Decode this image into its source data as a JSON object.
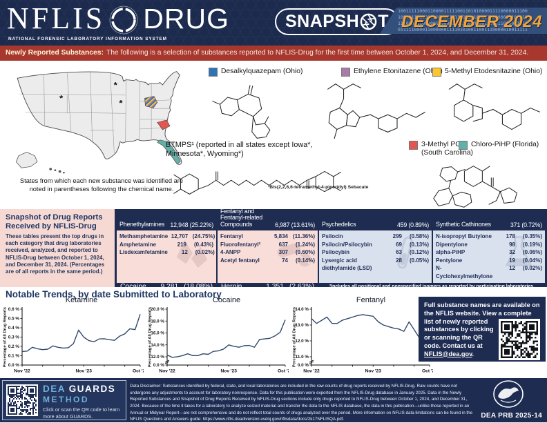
{
  "header": {
    "nflis": "NFLIS",
    "drug": "DRUG",
    "subtitle": "NATIONAL FORENSIC LABORATORY INFORMATION SYSTEM",
    "badge_pre": "SNAPSH",
    "badge_post": "T",
    "issue": "DECEMBER 2024",
    "binary_rows": [
      "100111110001100001111100110101000011110000011100",
      "100011111000011000010110100110011110000011101111",
      "111000111000001100000011110101001100111000001111",
      "011111000011000000111101010011001110000010011111"
    ]
  },
  "banner": {
    "label": "Newly Reported Substances:",
    "text": "The following is a selection of substances reported to NFLIS-Drug for the first time between October 1, 2024, and December 31, 2024."
  },
  "map": {
    "caption": "States from which each new substance was identified are\nnoted in parentheses following the chemical name.",
    "asterisk": "*",
    "asterisk_states": [
      "Wyoming",
      "Minnesota",
      "Iowa"
    ],
    "highlights": [
      {
        "state": "Ohio",
        "style": "striped-blue-purple-yellow"
      },
      {
        "state": "South Carolina",
        "color": "#e2574f"
      },
      {
        "state": "Florida",
        "color": "#62b0a7"
      }
    ]
  },
  "substances": [
    {
      "label": "Desalkylquazepam (Ohio)",
      "color": "#2e74b5"
    },
    {
      "label": "Ethylene Etonitazene (Ohio)",
      "color": "#a87ba8"
    },
    {
      "label": "5-Methyl Etodesnitazine (Ohio)",
      "color": "#fdc42c"
    },
    {
      "label": "BTMPS¹ (reported in all states except Iowa*, Minnesota*, Wyoming*)",
      "footnote": "¹Bis(2,2,6,6-tetramethyl-4-piperidyl) Sebacate"
    },
    {
      "label": "3-Methyl PCP (South Carolina)",
      "color": "#e2574f"
    },
    {
      "label": "Chloro-PiHP (Florida)",
      "color": "#62b0a7"
    }
  ],
  "snapshot": {
    "panel_title": "Snapshot of Drug Reports Received by NFLIS-Drug",
    "panel_body": "These tables present the top drugs in each category that drug laboratories received, analyzed, and reported to NFLIS-Drug between October 1, 2024, and December 31, 2024. (Percentages are of all reports in the same period.)",
    "footnote": "²Includes all positional and nonspecified isomers as reported by participating laboratories.",
    "categories": [
      {
        "name": "Phenethylamines",
        "count": "12,948",
        "pct": "(25.22%)",
        "theme": "pink",
        "watermark": "crystals-icon",
        "rows": [
          {
            "name": "Methamphetamine",
            "count": "12,707",
            "pct": "(24.75%)"
          },
          {
            "name": "Amphetamine",
            "count": "219",
            "pct": "(0.43%)"
          },
          {
            "name": "Lisdexamfetamine",
            "count": "12",
            "pct": "(0.02%)"
          }
        ],
        "footer": {
          "name": "Cocaine",
          "count": "9,281",
          "pct": "(18.08%)"
        }
      },
      {
        "name": "Fentanyl and Fentanyl-related Compounds",
        "count": "6,987",
        "pct": "(13.61%)",
        "theme": "pink",
        "watermark": "pills-icon",
        "rows": [
          {
            "name": "Fentanyl",
            "count": "5,834",
            "pct": "(11.36%)"
          },
          {
            "name": "Fluorofentanyl²",
            "count": "637",
            "pct": "(1.24%)"
          },
          {
            "name": "4-ANPP",
            "count": "307",
            "pct": "(0.60%)"
          },
          {
            "name": "Acetyl fentanyl",
            "count": "74",
            "pct": "(0.14%)"
          }
        ],
        "footer": {
          "name": "Heroin",
          "count": "1,351",
          "pct": "(2.63%)"
        }
      },
      {
        "name": "Psychedelics",
        "count": "459",
        "pct": "(0.89%)",
        "theme": "blue",
        "watermark": "testtube-icon",
        "rows": [
          {
            "name": "Psilocin",
            "count": "299",
            "pct": "(0.58%)"
          },
          {
            "name": "Psilocin/Psilocybin",
            "count": "69",
            "pct": "(0.13%)"
          },
          {
            "name": "Psilocybin",
            "count": "63",
            "pct": "(0.12%)"
          },
          {
            "name": "Lysergic acid diethylamide (LSD)",
            "count": "28",
            "pct": "(0.05%)"
          }
        ]
      },
      {
        "name": "Synthetic Cathinones",
        "count": "371",
        "pct": "(0.72%)",
        "theme": "blue",
        "watermark": "flask-icon",
        "rows": [
          {
            "name": "N-isopropyl Butylone",
            "count": "178",
            "pct": "(0.35%)"
          },
          {
            "name": "Dipentylone",
            "count": "98",
            "pct": "(0.19%)"
          },
          {
            "name": "alpha-PiHP",
            "count": "32",
            "pct": "(0.06%)"
          },
          {
            "name": "Pentylone",
            "count": "19",
            "pct": "(0.04%)"
          },
          {
            "name": "N-Cyclohexylmethylone",
            "count": "12",
            "pct": "(0.02%)"
          }
        ]
      }
    ]
  },
  "trends": {
    "title": "Notable Trends, by date Submitted to Laboratory"
  },
  "chart_data": [
    {
      "type": "line",
      "title": "Ketamine",
      "ylabel": "Percentage of All Drug Reports",
      "x_range": [
        "Nov 2022",
        "Oct 2024"
      ],
      "values": [
        0.145,
        0.15,
        0.19,
        0.175,
        0.165,
        0.17,
        0.205,
        0.19,
        0.182,
        0.186,
        0.23,
        0.375,
        0.3,
        0.262,
        0.25,
        0.28,
        0.282,
        0.272,
        0.265,
        0.31,
        0.335,
        0.39,
        0.38,
        0.545
      ],
      "ylim": [
        0,
        0.6
      ],
      "axis_break": false,
      "line_color": "#31486e",
      "y_ticks": [
        {
          "value": 0,
          "label": "0.0 %"
        },
        {
          "value": 0.1,
          "label": "0.1 %"
        },
        {
          "value": 0.2,
          "label": "0.2 %"
        },
        {
          "value": 0.3,
          "label": "0.3 %"
        },
        {
          "value": 0.4,
          "label": "0.4 %"
        },
        {
          "value": 0.5,
          "label": "0.5 %"
        },
        {
          "value": 0.6,
          "label": "0.6 %"
        }
      ],
      "x_ticks": [
        {
          "index": 0,
          "label": "Nov '22"
        },
        {
          "index": 12,
          "label": "Nov '23"
        },
        {
          "index": 23,
          "label": "Oct '24"
        }
      ]
    },
    {
      "type": "line",
      "title": "Cocaine",
      "ylabel": "Percentage of All Drug Reports",
      "x_range": [
        "Nov 2022",
        "Oct 2024"
      ],
      "values": [
        12.3,
        11.9,
        12.0,
        12.2,
        12.5,
        12.2,
        12.2,
        12.5,
        12.4,
        12.9,
        13.0,
        13.3,
        14.0,
        13.75,
        13.6,
        13.85,
        13.9,
        13.6,
        14.9,
        15.0,
        15.1,
        15.5,
        16.1,
        18.2
      ],
      "ylim": [
        12,
        20
      ],
      "axis_break": true,
      "zero_label": "0.0 %",
      "line_color": "#31486e",
      "y_ticks": [
        {
          "value": 12,
          "label": "12.0 %"
        },
        {
          "value": 14,
          "label": "14.0 %"
        },
        {
          "value": 16,
          "label": "16.0 %"
        },
        {
          "value": 18,
          "label": "18.0 %"
        },
        {
          "value": 20,
          "label": "20.0 %"
        }
      ],
      "x_ticks": [
        {
          "index": 0,
          "label": "Nov '22"
        },
        {
          "index": 12,
          "label": "Nov '23"
        },
        {
          "index": 23,
          "label": "Oct '24"
        }
      ]
    },
    {
      "type": "line",
      "title": "Fentanyl",
      "ylabel": "Percentage of All Drug Reports",
      "x_range": [
        "Nov 2022",
        "Oct 2024"
      ],
      "values": [
        13.4,
        13.1,
        13.3,
        13.5,
        13.1,
        13.1,
        13.3,
        13.4,
        13.5,
        13.6,
        13.65,
        13.6,
        13.55,
        13.2,
        13.0,
        12.9,
        12.8,
        12.75,
        12.6,
        13.2,
        12.7,
        12.2,
        11.7,
        11.7
      ],
      "ylim": [
        11,
        14
      ],
      "axis_break": true,
      "zero_label": "0.0 %",
      "line_color": "#31486e",
      "y_ticks": [
        {
          "value": 11,
          "label": "11.0 %"
        },
        {
          "value": 12,
          "label": "12.0 %"
        },
        {
          "value": 13,
          "label": "13.0 %"
        },
        {
          "value": 14,
          "label": "14.0 %"
        }
      ],
      "x_ticks": [
        {
          "index": 0,
          "label": "Nov '22"
        },
        {
          "index": 12,
          "label": "Nov '23"
        },
        {
          "index": 23,
          "label": "Oct '24"
        }
      ]
    }
  ],
  "info_box": {
    "text_1": "Full substance names are available on the NFLIS website. View a complete",
    "text_2": "list of newly reported substances by clicking or scanning the QR code. Contact us at ",
    "link": "NFLIS@dea.gov",
    "suffix": "."
  },
  "footer": {
    "guards_dea": "DEA",
    "guards_name": "GUARDS",
    "guards_method": "METHOD",
    "guards_caption": "Click or scan the QR code to learn more about GUARDS.",
    "disclaimer": "Data Disclaimer: Substances identified by federal, state, and local laboratories are included in the raw counts of drug reports received by NFLIS-Drug. Raw counts have not undergone any adjustments to account for laboratory nonresponse. Data for this publication were exported from the NFLIS-Drug database in January 2025. Data in the Newly Reported Substances and Snapshot of Drug Reports Received by NFLIS-Drug sections include only drugs reported to NFLIS-Drug between October 1, 2024, and December 31, 2024. Because of the time it takes for a laboratory to analyze seized material and transfer the data to the NFLIS database, the data in this publication—unlike those reported in an Annual or Midyear Report—are not comprehensive and do not reflect total counts of drugs analyzed over the period. More information on NFLIS data limitations can be found in the NFLIS Questions and Answers guide: ",
    "disclaimer_link": "https://www.nflis.deadiversion.usdoj.gov/nflisdata/docs/2k17NFLISQA.pdf",
    "disclaimer_suffix": ".",
    "prb": "DEA PRB 2025-14"
  }
}
